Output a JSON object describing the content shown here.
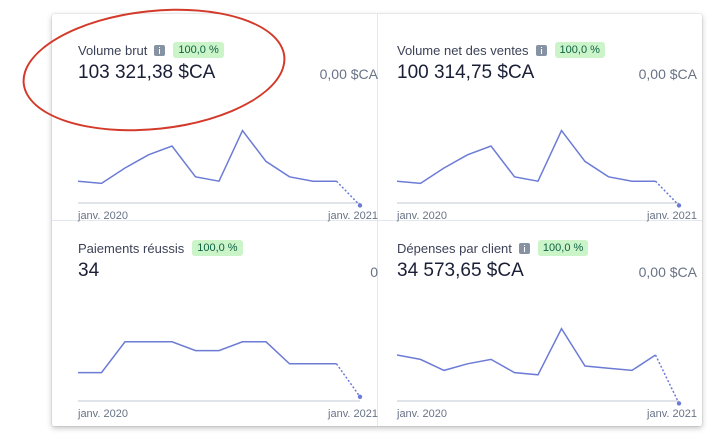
{
  "cards": [
    {
      "title": "Volume brut",
      "badge": "100,0 %",
      "value": "103 321,38 $CA",
      "compare": "0,00 $CA",
      "x_start": "janv. 2020",
      "x_end": "janv. 2021",
      "has_info": true,
      "series": [
        4,
        3,
        10,
        16,
        20,
        6,
        4,
        27,
        13,
        6,
        4,
        4,
        -7
      ]
    },
    {
      "title": "Volume net des ventes",
      "badge": "100,0 %",
      "value": "100 314,75 $CA",
      "compare": "0,00 $CA",
      "x_start": "janv. 2020",
      "x_end": "janv. 2021",
      "has_info": true,
      "series": [
        4,
        3,
        10,
        16,
        20,
        6,
        4,
        27,
        13,
        6,
        4,
        4,
        -7
      ]
    },
    {
      "title": "Paiements réussis",
      "badge": "100,0 %",
      "value": "34",
      "compare": "0",
      "x_start": "janv. 2020",
      "x_end": "janv. 2021",
      "has_info": false,
      "series": [
        7,
        7,
        21,
        21,
        21,
        17,
        17,
        21,
        21,
        11,
        11,
        11,
        -4
      ]
    },
    {
      "title": "Dépenses par client",
      "badge": "100,0 %",
      "value": "34 573,65 $CA",
      "compare": "0,00 $CA",
      "x_start": "janv. 2020",
      "x_end": "janv. 2021",
      "has_info": true,
      "series": [
        15,
        13,
        8,
        11,
        13,
        7,
        6,
        27,
        10,
        9,
        8,
        15,
        -7
      ]
    }
  ],
  "colors": {
    "line": "#6c7bd6",
    "baseline": "#c1c9d2",
    "annotation": "#d33a2a"
  }
}
